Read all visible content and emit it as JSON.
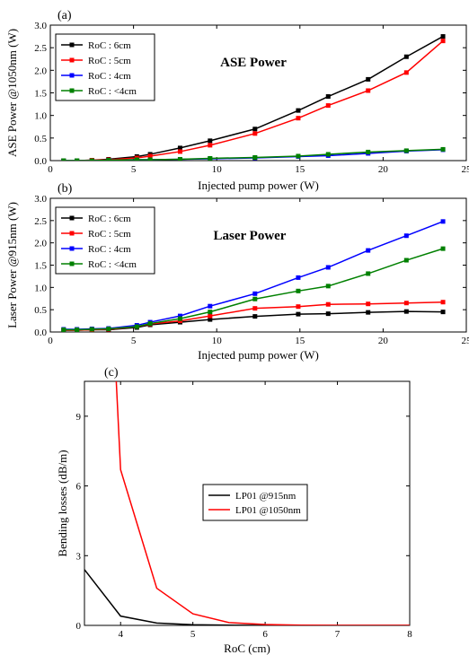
{
  "chart_data": [
    {
      "id": "a",
      "type": "line",
      "panel_label": "(a)",
      "annotation": "ASE Power",
      "xlabel": "Injected pump power (W)",
      "ylabel": "ASE Power @1050nm (W)",
      "xlim": [
        0,
        25
      ],
      "ylim": [
        0,
        3.0
      ],
      "xticks": [
        "0",
        "5",
        "10",
        "15",
        "20",
        "25"
      ],
      "yticks": [
        "0.0",
        "0.5",
        "1.0",
        "1.5",
        "2.0",
        "2.5",
        "3.0"
      ],
      "x": [
        0.8,
        1.6,
        2.5,
        3.5,
        5.2,
        6.0,
        7.8,
        9.6,
        12.3,
        14.9,
        16.7,
        19.1,
        21.4,
        23.6
      ],
      "series": [
        {
          "name": "RoC : 6cm",
          "color": "#000000",
          "values": [
            0.0,
            0.0,
            0.01,
            0.03,
            0.09,
            0.14,
            0.28,
            0.44,
            0.7,
            1.11,
            1.42,
            1.8,
            2.3,
            2.75
          ]
        },
        {
          "name": "RoC : 5cm",
          "color": "#ff0000",
          "values": [
            0.0,
            0.0,
            0.01,
            0.02,
            0.06,
            0.1,
            0.2,
            0.34,
            0.6,
            0.94,
            1.22,
            1.55,
            1.95,
            2.65
          ]
        },
        {
          "name": "RoC : 4cm",
          "color": "#0000ff",
          "values": [
            0.0,
            0.0,
            0.0,
            0.01,
            0.02,
            0.02,
            0.03,
            0.04,
            0.06,
            0.09,
            0.11,
            0.16,
            0.21,
            0.24
          ]
        },
        {
          "name": "RoC : <4cm",
          "color": "#008000",
          "values": [
            0.0,
            0.0,
            0.0,
            0.01,
            0.02,
            0.02,
            0.03,
            0.05,
            0.07,
            0.1,
            0.14,
            0.19,
            0.22,
            0.25
          ]
        }
      ],
      "legend_position": "top-left",
      "grid": false
    },
    {
      "id": "b",
      "type": "line",
      "panel_label": "(b)",
      "annotation": "Laser Power",
      "xlabel": "Injected pump power (W)",
      "ylabel": "Laser Power @915nm (W)",
      "xlim": [
        0,
        25
      ],
      "ylim": [
        0,
        3.0
      ],
      "xticks": [
        "0",
        "5",
        "10",
        "15",
        "20",
        "25"
      ],
      "yticks": [
        "0.0",
        "0.5",
        "1.0",
        "1.5",
        "2.0",
        "2.5",
        "3.0"
      ],
      "x": [
        0.8,
        1.6,
        2.5,
        3.5,
        5.2,
        6.0,
        7.8,
        9.6,
        12.3,
        14.9,
        16.7,
        19.1,
        21.4,
        23.6
      ],
      "series": [
        {
          "name": "RoC : 6cm",
          "color": "#000000",
          "values": [
            0.04,
            0.04,
            0.05,
            0.05,
            0.1,
            0.16,
            0.22,
            0.28,
            0.35,
            0.4,
            0.41,
            0.44,
            0.46,
            0.45
          ]
        },
        {
          "name": "RoC : 5cm",
          "color": "#ff0000",
          "values": [
            0.04,
            0.04,
            0.05,
            0.06,
            0.12,
            0.18,
            0.25,
            0.36,
            0.53,
            0.57,
            0.62,
            0.63,
            0.65,
            0.67
          ]
        },
        {
          "name": "RoC : 4cm",
          "color": "#0000ff",
          "values": [
            0.06,
            0.06,
            0.07,
            0.08,
            0.15,
            0.22,
            0.36,
            0.58,
            0.86,
            1.22,
            1.45,
            1.83,
            2.16,
            2.48
          ]
        },
        {
          "name": "RoC : <4cm",
          "color": "#008000",
          "values": [
            0.05,
            0.05,
            0.06,
            0.07,
            0.12,
            0.19,
            0.3,
            0.45,
            0.74,
            0.92,
            1.03,
            1.31,
            1.61,
            1.87
          ]
        }
      ],
      "legend_position": "top-left",
      "grid": false
    },
    {
      "id": "c",
      "type": "line",
      "panel_label": "(c)",
      "xlabel": "RoC (cm)",
      "ylabel": "Bending losses (dB/m)",
      "xlim": [
        3.5,
        8
      ],
      "ylim": [
        0,
        10.5
      ],
      "xticks": [
        "4",
        "5",
        "6",
        "7",
        "8"
      ],
      "yticks": [
        "0",
        "3",
        "6",
        "9"
      ],
      "series": [
        {
          "name": "LP01 @915nm",
          "color": "#000000",
          "x": [
            3.5,
            4.0,
            4.5,
            5.0,
            5.5,
            6.0,
            6.5,
            7.0,
            7.5,
            8.0
          ],
          "values": [
            2.4,
            0.4,
            0.1,
            0.03,
            0.01,
            0.0,
            0.0,
            0.0,
            0.0,
            0.0
          ]
        },
        {
          "name": "LP01 @1050nm",
          "color": "#ff0000",
          "x": [
            3.94,
            4.0,
            4.5,
            5.0,
            5.5,
            6.0,
            6.5,
            7.0,
            7.5,
            8.0
          ],
          "values": [
            10.5,
            6.7,
            1.6,
            0.5,
            0.12,
            0.04,
            0.01,
            0.0,
            0.0,
            0.0
          ]
        }
      ],
      "legend_position": "center-right",
      "grid": false
    }
  ]
}
